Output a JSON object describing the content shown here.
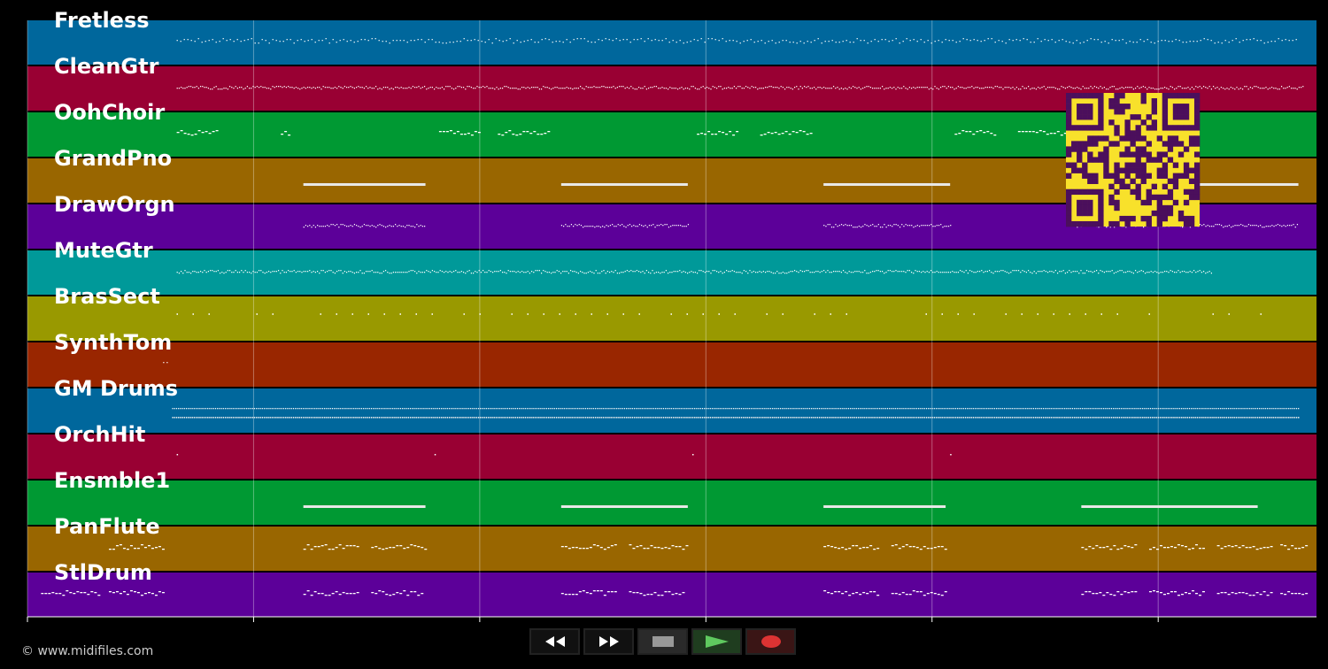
{
  "tracks": [
    {
      "name": "Fretless",
      "color": "#00679c",
      "notes": "melody",
      "segments": [
        [
          33,
          281
        ]
      ]
    },
    {
      "name": "CleanGtr",
      "color": "#990033",
      "notes": "dense",
      "segments": [
        [
          33,
          282
        ]
      ]
    },
    {
      "name": "OohChoir",
      "color": "#009933",
      "notes": "phrases",
      "segments": [
        [
          33,
          42
        ],
        [
          56,
          58
        ],
        [
          91,
          100
        ],
        [
          104,
          115
        ],
        [
          148,
          157
        ],
        [
          162,
          173
        ],
        [
          205,
          214
        ],
        [
          219,
          232
        ]
      ]
    },
    {
      "name": "GrandPno",
      "color": "#996600",
      "notes": "bar",
      "segments": [
        [
          61,
          88
        ],
        [
          118,
          146
        ],
        [
          176,
          204
        ],
        [
          232,
          281
        ]
      ]
    },
    {
      "name": "DrawOrgn",
      "color": "#5c0099",
      "notes": "dense",
      "segments": [
        [
          61,
          88
        ],
        [
          118,
          146
        ],
        [
          176,
          204
        ],
        [
          232,
          281
        ]
      ]
    },
    {
      "name": "MuteGtr",
      "color": "#009999",
      "notes": "dense",
      "segments": [
        [
          33,
          262
        ]
      ]
    },
    {
      "name": "BrasSect",
      "color": "#999900",
      "notes": "sparse",
      "segments": [
        [
          33,
          281
        ]
      ]
    },
    {
      "name": "SynthTom",
      "color": "#992600",
      "notes": "none",
      "segments": [
        [
          30,
          31
        ]
      ]
    },
    {
      "name": "GM Drums",
      "color": "#00679c",
      "notes": "drums",
      "segments": [
        [
          32,
          281
        ]
      ]
    },
    {
      "name": "OrchHit",
      "color": "#990033",
      "notes": "dots",
      "segments": [
        [
          33,
          33.5
        ],
        [
          90,
          90.5
        ],
        [
          147,
          147.5
        ],
        [
          204,
          204.5
        ]
      ]
    },
    {
      "name": "Ensmble1",
      "color": "#009933",
      "notes": "bar",
      "segments": [
        [
          61,
          88
        ],
        [
          118,
          146
        ],
        [
          176,
          203
        ],
        [
          233,
          272
        ]
      ]
    },
    {
      "name": "PanFlute",
      "color": "#996600",
      "notes": "phrases",
      "segments": [
        [
          18,
          30
        ],
        [
          61,
          73
        ],
        [
          76,
          88
        ],
        [
          118,
          130
        ],
        [
          133,
          146
        ],
        [
          176,
          188
        ],
        [
          191,
          203
        ],
        [
          233,
          245
        ],
        [
          248,
          260
        ],
        [
          263,
          275
        ],
        [
          277,
          283
        ]
      ]
    },
    {
      "name": "StlDrum",
      "color": "#5c0099",
      "notes": "phrases",
      "segments": [
        [
          3,
          16
        ],
        [
          18,
          30
        ],
        [
          61,
          73
        ],
        [
          76,
          87
        ],
        [
          118,
          130
        ],
        [
          133,
          145
        ],
        [
          176,
          188
        ],
        [
          191,
          203
        ],
        [
          233,
          245
        ],
        [
          248,
          260
        ],
        [
          263,
          275
        ],
        [
          277,
          283
        ]
      ]
    }
  ],
  "time_axis": {
    "max_seconds": 285,
    "ticks": [
      "0.0s",
      "50.0s",
      "100.0s",
      "150.0s",
      "200.0s",
      "250.0s"
    ]
  },
  "transport": {
    "rewind": "rewind-icon",
    "fast_forward": "fast-forward-icon",
    "stop": "stop-icon",
    "play": "play-icon",
    "record": "record-icon"
  },
  "copyright": "© www.midifiles.com",
  "qr_colors": {
    "fg": "#4b0f5c",
    "bg": "#f8e12b"
  }
}
